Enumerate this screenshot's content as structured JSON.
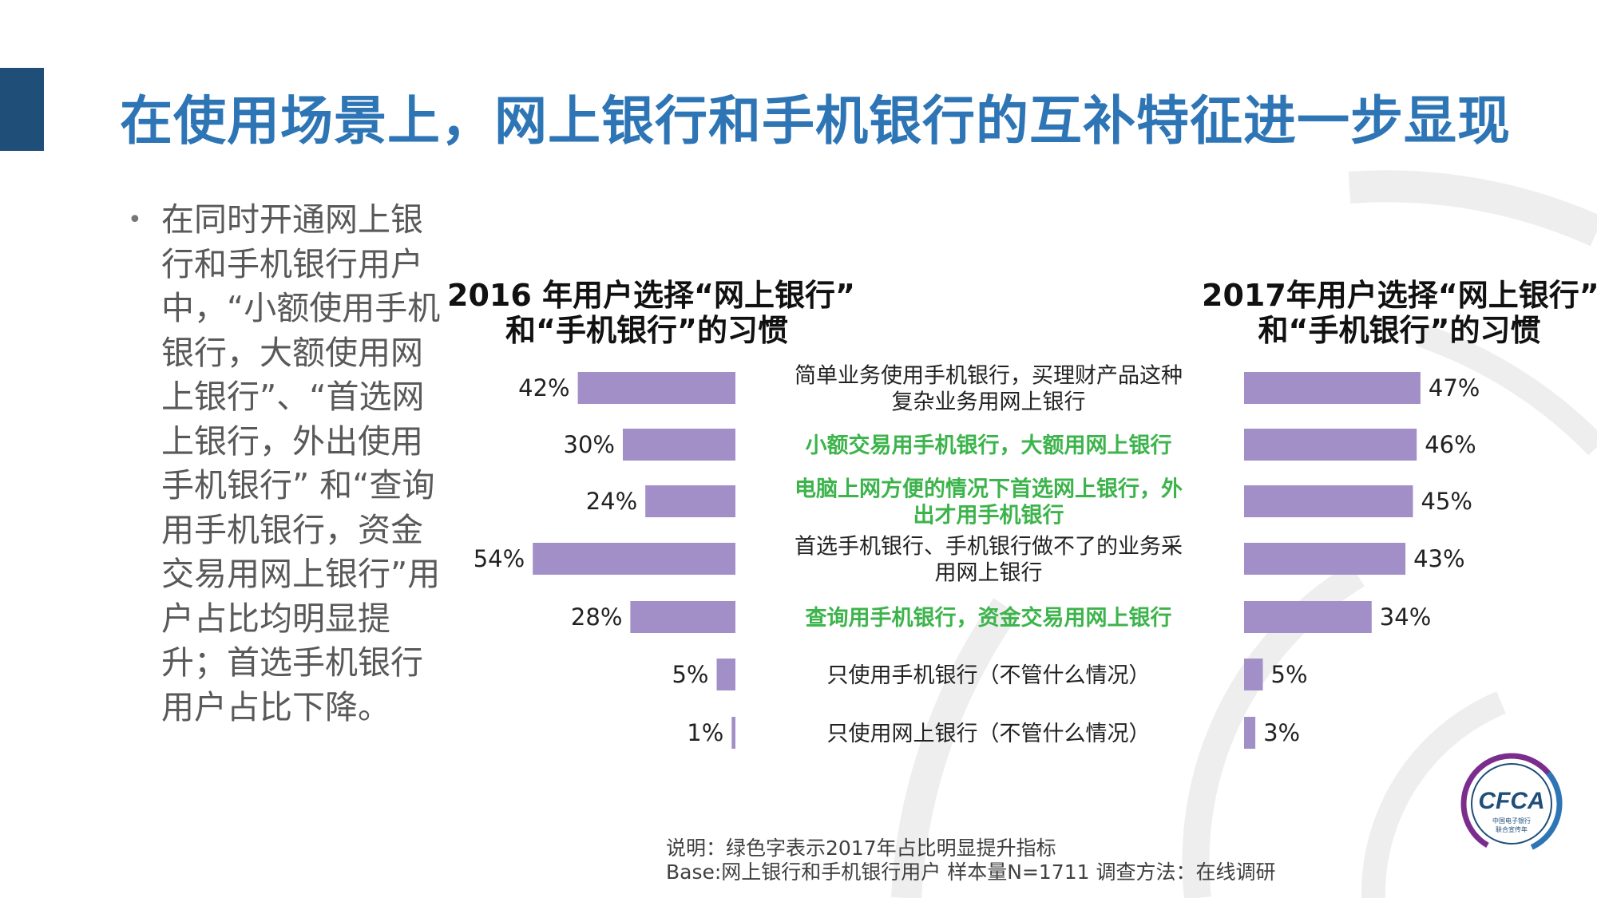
{
  "page": {
    "title": "在使用场景上，网上银行和手机银行的互补特征进一步显现",
    "bullet": "在同时开通网上银行和手机银行用户中，“小额使用手机银行，大额使用网上银行”、“首选网上银行，外出使用手机银行” 和“查询用手机银行，资金交易用网上银行”用户占比均明显提升；首选手机银行用户占比下降。",
    "footnote_line1": "说明：绿色字表示2017年占比明显提升指标",
    "footnote_line2": "Base:网上银行和手机银行用户    样本量N=1711    调查方法：在线调研",
    "logo_text": "CFCA",
    "logo_subtext_1": "中国电子银行",
    "logo_subtext_2": "联合宣传年"
  },
  "colors": {
    "title_blue": "#2e75b6",
    "accent_bar": "#1f4e79",
    "bar": "#a28fc7",
    "highlight_green": "#3cb44b",
    "label_dark": "#222222"
  },
  "chart_data": [
    {
      "type": "bar",
      "orientation": "horizontal",
      "direction": "right-to-left",
      "title_line1": "2016 年用户选择“网上银行”",
      "title_line2": "和“手机银行”的习惯",
      "categories": [
        "简单业务使用手机银行，买理财产品这种复杂业务用网上银行",
        "小额交易用手机银行，大额用网上银行",
        "电脑上网方便的情况下首选网上银行，外出才用手机银行",
        "首选手机银行、手机银行做不了的业务采用网上银行",
        "查询用手机银行，资金交易用网上银行",
        "只使用手机银行（不管什么情况）",
        "只使用网上银行（不管什么情况）"
      ],
      "values": [
        42,
        30,
        24,
        54,
        28,
        5,
        1
      ],
      "labels": [
        "42%",
        "30%",
        "24%",
        "54%",
        "28%",
        "5%",
        "1%"
      ],
      "unit": "%"
    },
    {
      "type": "bar",
      "orientation": "horizontal",
      "direction": "left-to-right",
      "title_line1": "2017年用户选择“网上银行”",
      "title_line2": "和“手机银行”的习惯",
      "categories": [
        "简单业务使用手机银行，买理财产品这种复杂业务用网上银行",
        "小额交易用手机银行，大额用网上银行",
        "电脑上网方便的情况下首选网上银行，外出才用手机银行",
        "首选手机银行、手机银行做不了的业务采用网上银行",
        "查询用手机银行，资金交易用网上银行",
        "只使用手机银行（不管什么情况）",
        "只使用网上银行（不管什么情况）"
      ],
      "values": [
        47,
        46,
        45,
        43,
        34,
        5,
        3
      ],
      "labels": [
        "47%",
        "46%",
        "45%",
        "43%",
        "34%",
        "5%",
        "3%"
      ],
      "unit": "%"
    }
  ],
  "category_labels": [
    {
      "lines": [
        "简单业务使用手机银行，买理财产品这种",
        "复杂业务用网上银行"
      ],
      "highlight": false
    },
    {
      "lines": [
        "小额交易用手机银行，大额用网上银行"
      ],
      "highlight": true
    },
    {
      "lines": [
        "电脑上网方便的情况下首选网上银行，外",
        "出才用手机银行"
      ],
      "highlight": true
    },
    {
      "lines": [
        "首选手机银行、手机银行做不了的业务采",
        "用网上银行"
      ],
      "highlight": false
    },
    {
      "lines": [
        "查询用手机银行，资金交易用网上银行"
      ],
      "highlight": true
    },
    {
      "lines": [
        "只使用手机银行（不管什么情况）"
      ],
      "highlight": false
    },
    {
      "lines": [
        "只使用网上银行（不管什么情况）"
      ],
      "highlight": false
    }
  ]
}
